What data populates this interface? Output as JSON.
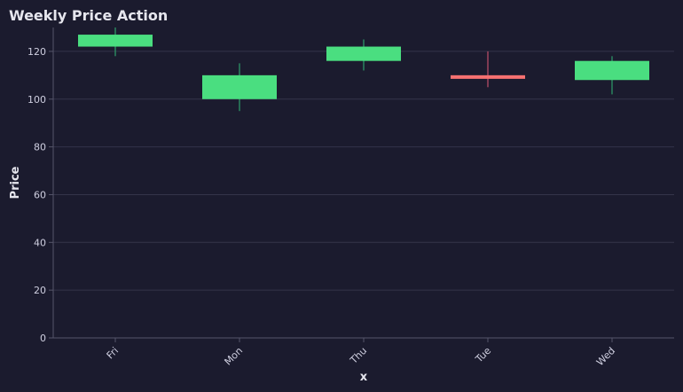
{
  "chart_data": {
    "type": "candlestick",
    "title": "Weekly Price Action",
    "xlabel": "x",
    "ylabel": "Price",
    "ylim": [
      0,
      130
    ],
    "yticks": [
      0,
      20,
      40,
      60,
      80,
      100,
      120
    ],
    "grid": "horizontal",
    "categories": [
      "Fri",
      "Mon",
      "Thu",
      "Tue",
      "Wed"
    ],
    "ohlc": [
      {
        "x": "Fri",
        "open": 122,
        "high": 130,
        "low": 118,
        "close": 127
      },
      {
        "x": "Mon",
        "open": 100,
        "high": 115,
        "low": 95,
        "close": 110
      },
      {
        "x": "Thu",
        "open": 116,
        "high": 125,
        "low": 112,
        "close": 122
      },
      {
        "x": "Tue",
        "open": 110,
        "high": 120,
        "low": 105,
        "close": 108.5
      },
      {
        "x": "Wed",
        "open": 108,
        "high": 118,
        "low": 102,
        "close": 116
      }
    ]
  },
  "colors": {
    "background": "#1b1b2e",
    "up": "#4ade80",
    "up_wick": "#2f9e6a",
    "down": "#f87171",
    "down_wick": "#c0506a",
    "grid": "#34344a",
    "axis": "#55556a",
    "text": "#e6e6ee",
    "tick_text": "#cfcfe0"
  }
}
